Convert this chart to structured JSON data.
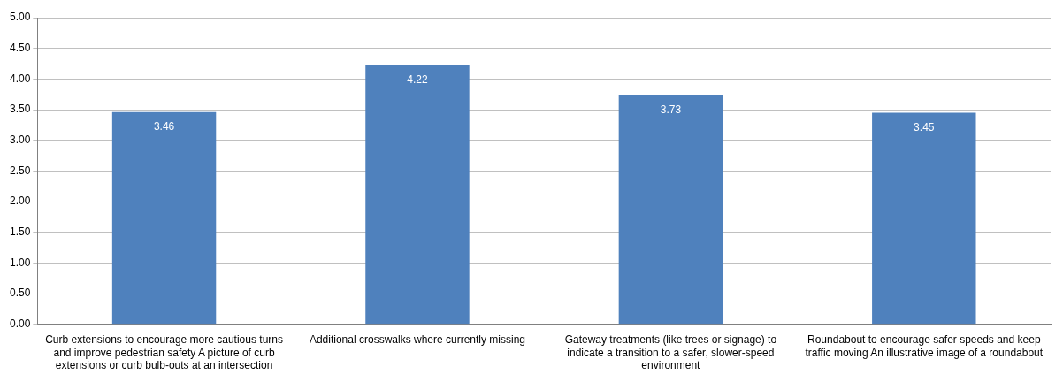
{
  "chart_data": {
    "type": "bar",
    "categories": [
      "Curb extensions to encourage more cautious turns and improve pedestrian safety A picture of curb extensions or curb bulb-outs at an intersection",
      "Additional crosswalks where currently missing",
      "Gateway treatments (like trees or signage) to indicate a transition to a safer, slower-speed environment",
      "Roundabout to encourage safer speeds and keep traffic moving An illustrative image of a roundabout"
    ],
    "values": [
      3.46,
      4.22,
      3.73,
      3.45
    ],
    "color": "#4f81bd",
    "ylim": [
      0,
      5
    ],
    "yticks": [
      {
        "value": 0,
        "label": "0.00"
      },
      {
        "value": 0.5,
        "label": "0.50"
      },
      {
        "value": 1,
        "label": "1.00"
      },
      {
        "value": 1.5,
        "label": "1.50"
      },
      {
        "value": 2,
        "label": "2.00"
      },
      {
        "value": 2.5,
        "label": "2.50"
      },
      {
        "value": 3,
        "label": "3.00"
      },
      {
        "value": 3.5,
        "label": "3.50"
      },
      {
        "value": 4,
        "label": "4.00"
      },
      {
        "value": 4.5,
        "label": "4.50"
      },
      {
        "value": 5,
        "label": "5.00"
      }
    ],
    "grid": "y",
    "data_labels": true
  }
}
